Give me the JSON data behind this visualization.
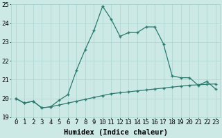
{
  "xlabel": "Humidex (Indice chaleur)",
  "x": [
    0,
    1,
    2,
    3,
    4,
    5,
    6,
    7,
    8,
    9,
    10,
    11,
    12,
    13,
    14,
    15,
    16,
    17,
    18,
    19,
    20,
    21,
    22,
    23
  ],
  "line1": [
    20.0,
    19.75,
    19.85,
    19.5,
    19.55,
    19.65,
    19.75,
    19.85,
    19.95,
    20.05,
    20.15,
    20.25,
    20.3,
    20.35,
    20.4,
    20.45,
    20.5,
    20.55,
    20.6,
    20.65,
    20.7,
    20.72,
    20.75,
    20.77
  ],
  "line2": [
    20.0,
    19.75,
    19.85,
    19.5,
    19.55,
    19.9,
    20.2,
    21.5,
    22.6,
    23.6,
    24.9,
    24.2,
    23.3,
    23.5,
    23.5,
    23.8,
    23.8,
    22.9,
    21.2,
    21.1,
    21.1,
    20.7,
    20.9,
    20.5
  ],
  "line_color": "#2b7a6e",
  "bg_color": "#cce9e6",
  "grid_color": "#aad4d0",
  "ylim": [
    19,
    25
  ],
  "xlim": [
    -0.5,
    23.5
  ],
  "yticks": [
    19,
    20,
    21,
    22,
    23,
    24,
    25
  ],
  "xticks": [
    0,
    1,
    2,
    3,
    4,
    5,
    6,
    7,
    8,
    9,
    10,
    11,
    12,
    13,
    14,
    15,
    16,
    17,
    18,
    19,
    20,
    21,
    22,
    23
  ],
  "xlabel_fontsize": 7.5,
  "tick_fontsize": 6.5,
  "marker": "+",
  "linewidth": 0.9,
  "markersize": 3.0,
  "markeredgewidth": 1.0
}
